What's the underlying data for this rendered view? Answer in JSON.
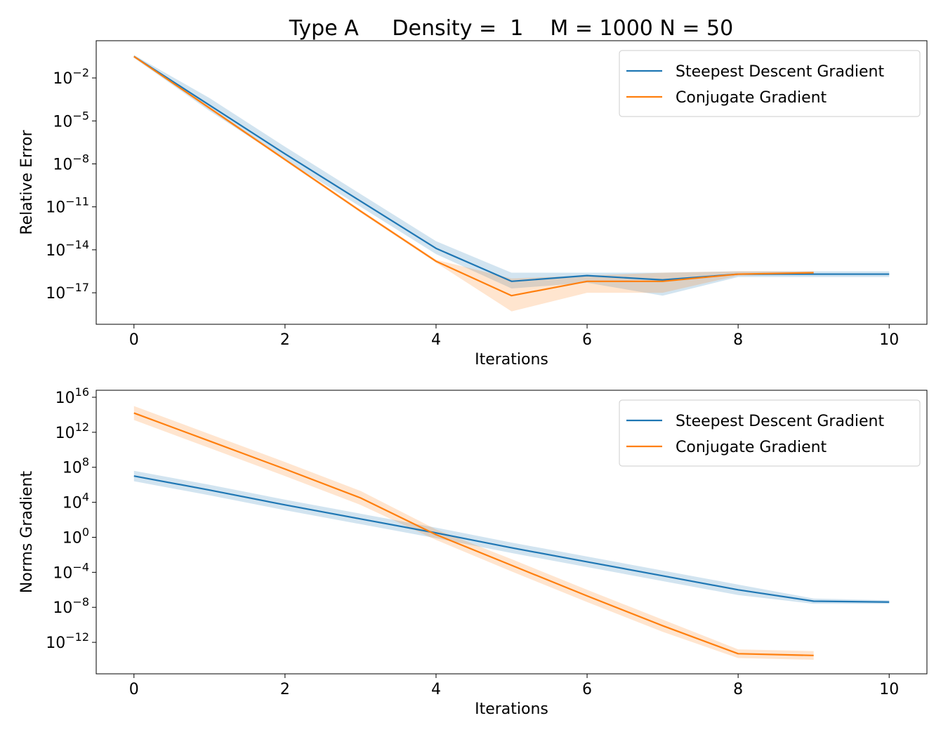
{
  "figure_title": "Type A     Density =  1    M = 1000 N = 50",
  "colors": {
    "steepest": "#1f77b4",
    "conjugate": "#ff7f0e"
  },
  "chart_data": [
    {
      "type": "line",
      "yscale": "log",
      "xlabel": "Iterations",
      "ylabel": "Relative Error",
      "xlim": [
        -0.5,
        10.5
      ],
      "ylim_exp": [
        -19.2,
        0.6
      ],
      "xticks": [
        0,
        2,
        4,
        6,
        8,
        10
      ],
      "yticks_exp": [
        -2,
        -5,
        -8,
        -11,
        -14,
        -17
      ],
      "legend": "top-right",
      "grid": false,
      "series": [
        {
          "name": "Steepest Descent Gradient",
          "color": "#1f77b4",
          "x": [
            0,
            1,
            2,
            3,
            4,
            5,
            6,
            7,
            8,
            9,
            10
          ],
          "y_exp": [
            -0.5,
            -3.9,
            -7.3,
            -10.6,
            -13.9,
            -16.2,
            -15.8,
            -16.1,
            -15.7,
            -15.7,
            -15.7
          ],
          "band_low_exp": [
            -0.6,
            -4.3,
            -7.7,
            -11.0,
            -14.3,
            -16.7,
            -16.3,
            -17.2,
            -15.9,
            -15.9,
            -15.9
          ],
          "band_high_exp": [
            -0.4,
            -3.4,
            -6.8,
            -10.1,
            -13.4,
            -15.6,
            -15.6,
            -15.6,
            -15.5,
            -15.5,
            -15.5
          ]
        },
        {
          "name": "Conjugate Gradient",
          "color": "#ff7f0e",
          "x": [
            0,
            1,
            2,
            3,
            4,
            5,
            6,
            7,
            8,
            9
          ],
          "y_exp": [
            -0.5,
            -4.1,
            -7.7,
            -11.3,
            -14.8,
            -17.2,
            -16.2,
            -16.2,
            -15.7,
            -15.6
          ],
          "band_low_exp": [
            -0.55,
            -4.2,
            -7.8,
            -11.4,
            -14.9,
            -18.3,
            -17.0,
            -17.0,
            -15.8,
            -15.7
          ],
          "band_high_exp": [
            -0.45,
            -4.0,
            -7.6,
            -11.2,
            -14.7,
            -16.0,
            -15.8,
            -15.6,
            -15.5,
            -15.5
          ]
        }
      ]
    },
    {
      "type": "line",
      "yscale": "log",
      "xlabel": "Iterations",
      "ylabel": "Norms Gradient",
      "xlim": [
        -0.5,
        10.5
      ],
      "ylim_exp": [
        -15.6,
        16.8
      ],
      "xticks": [
        0,
        2,
        4,
        6,
        8,
        10
      ],
      "yticks_exp": [
        16,
        12,
        8,
        4,
        0,
        -4,
        -8,
        -12
      ],
      "legend": "top-right",
      "grid": false,
      "series": [
        {
          "name": "Steepest Descent Gradient",
          "color": "#1f77b4",
          "x": [
            0,
            1,
            2,
            3,
            4,
            5,
            6,
            7,
            8,
            9,
            10
          ],
          "y_exp": [
            7.0,
            5.4,
            3.7,
            2.1,
            0.5,
            -1.2,
            -2.8,
            -4.4,
            -6.0,
            -7.3,
            -7.4
          ],
          "band_low_exp": [
            6.4,
            4.8,
            3.1,
            1.5,
            -0.1,
            -1.8,
            -3.4,
            -5.0,
            -6.6,
            -7.6,
            -7.6
          ],
          "band_high_exp": [
            7.6,
            6.0,
            4.3,
            2.7,
            1.1,
            -0.6,
            -2.2,
            -3.8,
            -5.4,
            -7.0,
            -7.2
          ]
        },
        {
          "name": "Conjugate Gradient",
          "color": "#ff7f0e",
          "x": [
            0,
            1,
            2,
            3,
            4,
            5,
            6,
            7,
            8,
            9
          ],
          "y_exp": [
            14.2,
            11.0,
            7.8,
            4.5,
            0.3,
            -3.2,
            -6.7,
            -10.1,
            -13.3,
            -13.5
          ],
          "band_low_exp": [
            13.4,
            10.2,
            7.0,
            3.7,
            -0.3,
            -3.9,
            -7.4,
            -10.8,
            -13.8,
            -14.0
          ],
          "band_high_exp": [
            15.0,
            11.8,
            8.6,
            5.3,
            0.9,
            -2.5,
            -6.0,
            -9.4,
            -12.8,
            -13.0
          ]
        }
      ]
    }
  ]
}
